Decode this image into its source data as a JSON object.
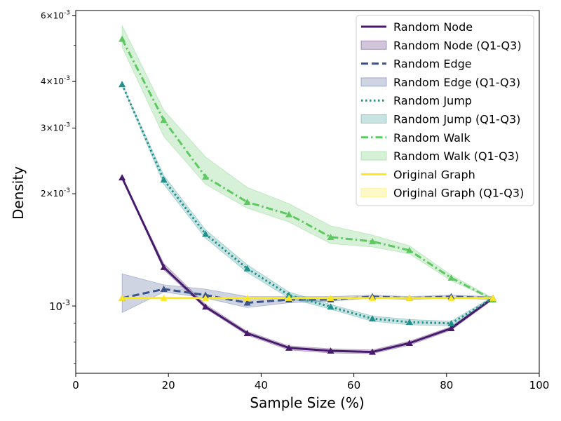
{
  "chart_data": {
    "type": "line",
    "xlabel": "Sample Size (%)",
    "ylabel": "Density",
    "xlim": [
      0,
      100
    ],
    "ylim": [
      0.00066,
      0.0062
    ],
    "yscale": "log",
    "grid": false,
    "legend_placement": "top-right",
    "x_ticks": [
      0,
      20,
      40,
      60,
      80,
      100
    ],
    "x_tick_labels": [
      "0",
      "20",
      "40",
      "60",
      "80",
      "100"
    ],
    "y_ticks": [
      0.001,
      0.002,
      0.003,
      0.004,
      0.006
    ],
    "y_tick_labels": [
      "10^{-3}",
      "2×10^{-3}",
      "3×10^{-3}",
      "4×10^{-3}",
      "6×10^{-3}"
    ],
    "x": [
      10,
      19,
      28,
      37,
      46,
      55,
      64,
      72,
      81,
      90
    ],
    "series": [
      {
        "name": "Random Node",
        "band_name": "Random Node (Q1-Q3)",
        "color": "#481a6c",
        "dash": "solid",
        "values": [
          0.00221,
          0.00127,
          0.000995,
          0.000845,
          0.000772,
          0.000758,
          0.000753,
          0.000795,
          0.000871,
          0.00105
        ],
        "q1": [
          0.00221,
          0.00125,
          0.000985,
          0.000835,
          0.000762,
          0.000748,
          0.000745,
          0.000785,
          0.000862,
          0.00104
        ],
        "q3": [
          0.00221,
          0.0013,
          0.00101,
          0.000855,
          0.000782,
          0.000768,
          0.000762,
          0.000805,
          0.00088,
          0.00106
        ]
      },
      {
        "name": "Random Edge",
        "band_name": "Random Edge (Q1-Q3)",
        "color": "#3b528b",
        "dash": "dashed",
        "values": [
          0.00105,
          0.00111,
          0.00107,
          0.00102,
          0.00104,
          0.00104,
          0.00106,
          0.00105,
          0.00106,
          0.00105
        ],
        "q1": [
          0.00096,
          0.00109,
          0.00105,
          0.00099,
          0.00102,
          0.00103,
          0.00105,
          0.00104,
          0.00105,
          0.00104
        ],
        "q3": [
          0.00122,
          0.00114,
          0.00111,
          0.00106,
          0.00106,
          0.00106,
          0.00107,
          0.00106,
          0.00107,
          0.00106
        ]
      },
      {
        "name": "Random Jump",
        "band_name": "Random Jump (Q1-Q3)",
        "color": "#21918c",
        "dash": "dotted",
        "values": [
          0.00393,
          0.00218,
          0.00156,
          0.00126,
          0.00107,
          0.000995,
          0.000925,
          0.000905,
          0.000898,
          0.00105
        ],
        "q1": [
          0.00393,
          0.00212,
          0.00152,
          0.00123,
          0.00105,
          0.00098,
          0.00091,
          0.00089,
          0.000885,
          0.00104
        ],
        "q3": [
          0.00393,
          0.00224,
          0.0016,
          0.00129,
          0.00109,
          0.00101,
          0.00094,
          0.00092,
          0.00091,
          0.00106
        ]
      },
      {
        "name": "Random Walk",
        "band_name": "Random Walk (Q1-Q3)",
        "color": "#5ec962",
        "dash": "dashdot",
        "values": [
          0.0052,
          0.00315,
          0.00222,
          0.0019,
          0.00176,
          0.00153,
          0.00149,
          0.00141,
          0.00119,
          0.00104
        ],
        "q1": [
          0.00495,
          0.00285,
          0.00212,
          0.00183,
          0.00168,
          0.00147,
          0.00144,
          0.00138,
          0.00117,
          0.00104
        ],
        "q3": [
          0.00565,
          0.00335,
          0.00251,
          0.00208,
          0.00188,
          0.00164,
          0.00155,
          0.00145,
          0.00121,
          0.00105
        ]
      },
      {
        "name": "Original Graph",
        "band_name": "Original Graph (Q1-Q3)",
        "color": "#fde725",
        "dash": "solid",
        "values": [
          0.00105,
          0.00105,
          0.00105,
          0.00105,
          0.00105,
          0.00105,
          0.00105,
          0.00105,
          0.00105,
          0.00105
        ],
        "q1": [
          0.00105,
          0.00105,
          0.00105,
          0.00105,
          0.00105,
          0.00105,
          0.00105,
          0.00105,
          0.00105,
          0.00105
        ],
        "q3": [
          0.00105,
          0.00105,
          0.00105,
          0.00105,
          0.00105,
          0.00105,
          0.00105,
          0.00105,
          0.00105,
          0.00105
        ]
      }
    ]
  }
}
